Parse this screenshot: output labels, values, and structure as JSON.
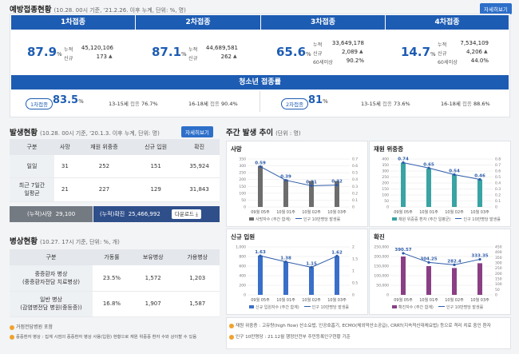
{
  "vaccination": {
    "title": "예방접종현황",
    "subtitle": "(10.28. 00시 기준, '21.2.26. 이후 누계, 단위: %, 명)",
    "detail_label": "자세히보기",
    "doses": [
      {
        "name": "1차접종",
        "pct": "87.9",
        "unit": "%",
        "cum_label": "누적",
        "cum": "45,120,106",
        "new_label": "신규",
        "new": "173"
      },
      {
        "name": "2차접종",
        "pct": "87.1",
        "unit": "%",
        "cum_label": "누적",
        "cum": "44,689,581",
        "new_label": "신규",
        "new": "262"
      },
      {
        "name": "3차접종",
        "pct": "65.6",
        "unit": "%",
        "cum_label": "누적",
        "cum": "33,649,178",
        "new_label": "신규",
        "new": "2,089",
        "sixty_label": "60세이상",
        "sixty": "90.2%"
      },
      {
        "name": "4차접종",
        "pct": "14.7",
        "unit": "%",
        "cum_label": "누적",
        "cum": "7,534,109",
        "new_label": "신규",
        "new": "4,206",
        "sixty_label": "60세이상",
        "sixty": "44.0%"
      }
    ],
    "youth": {
      "title": "청소년 접종률",
      "first_label": "1차접종",
      "first_pct": "83.5",
      "pct_unit": "%",
      "first_a_age": "13-15세",
      "first_a_lbl": "접종",
      "first_a_val": "76.7%",
      "first_b_age": "16-18세",
      "first_b_lbl": "접종",
      "first_b_val": "90.4%",
      "second_label": "2차접종",
      "second_pct": "81",
      "second_a_age": "13-15세",
      "second_a_lbl": "접종",
      "second_a_val": "73.6%",
      "second_b_age": "16-18세",
      "second_b_lbl": "접종",
      "second_b_val": "88.6%"
    }
  },
  "occurrence": {
    "title": "발생현황",
    "subtitle": "(10.28. 00시 기준, '20.1.3. 이후 누계, 단위: 명)",
    "detail_label": "자세히보기",
    "headers": [
      "구분",
      "사망",
      "재원 위중증",
      "신규 입원",
      "확진"
    ],
    "rows": [
      {
        "label": "일일",
        "cells": [
          "31",
          "252",
          "151",
          "35,924"
        ]
      },
      {
        "label1": "최근 7일간",
        "label2": "일평균",
        "cells": [
          "21",
          "227",
          "129",
          "31,843"
        ]
      }
    ],
    "cum_death_label": "(누적)사망",
    "cum_death": "29,100",
    "cum_conf_label": "(누적)확진",
    "cum_conf": "25,466,992",
    "download_label": "다운로드"
  },
  "beds": {
    "title": "병상현황",
    "subtitle": "(10.27. 17시 기준, 단위: %, 개)",
    "headers": [
      "구분",
      "가동률",
      "보유병상",
      "가용병상"
    ],
    "rows": [
      {
        "label1": "중증환자 병상",
        "label2": "(중증환자전담 치료병상)",
        "cells": [
          "23.5%",
          "1,572",
          "1,203"
        ]
      },
      {
        "label1": "일반 병상",
        "label2": "(감염병전담 병원(중등증))",
        "cells": [
          "16.8%",
          "1,907",
          "1,587"
        ]
      }
    ],
    "note1": "거점전담병원 포함",
    "note2": "중증환자 병상 : 집계 시점의 중증환자 병상 사용(입원) 현황으로 재원 위중증 환자 수와 상이할 수 있음"
  },
  "weekly": {
    "title": "주간 발생 추이",
    "subtitle": "(단위 : 명)",
    "note1": "재원 위중증 : 고유량(high flow) 산소요법, 인공호흡기, ECMO(체외막산소공급), CRRT(지속적신대체요법) 등으로 격리 치료 중인 환자",
    "note2": "인구 10만명당 : 21.12월 행정안전부 주민등록인구현황 기준",
    "charts": [
      {
        "title": "사망",
        "color": "#6d6d6d",
        "legend1": "사망자수 (주간 합계)",
        "legend2": "인구 10만명당 발생률",
        "chart_data": {
          "type": "bar",
          "categories": [
            "09월 05주",
            "10월 01주",
            "10월 02주",
            "10월 03주"
          ],
          "bars": [
            300,
            200,
            190,
            190
          ],
          "rate": [
            0.59,
            0.39,
            0.31,
            0.32
          ],
          "rate_labels": [
            "0.59",
            "0.39",
            "0.31",
            "0.32"
          ],
          "ylim": [
            0,
            350
          ],
          "yticks": [
            "0",
            "50",
            "100",
            "150",
            "200",
            "250",
            "300",
            "350"
          ],
          "ylim2": [
            0,
            0.7
          ],
          "yticks2": [
            "0",
            "0.1",
            "0.2",
            "0.3",
            "0.4",
            "0.5",
            "0.6",
            "0.7"
          ]
        }
      },
      {
        "title": "재원 위중증",
        "color": "#3aa3a3",
        "legend1": "재원 위중증 환자 (주간 일평균)",
        "legend2": "인구 10만명당 발생률",
        "chart_data": {
          "type": "bar",
          "categories": [
            "09월 05주",
            "10월 01주",
            "10월 02주",
            "10월 03주"
          ],
          "bars": [
            370,
            320,
            270,
            230
          ],
          "rate": [
            0.74,
            0.65,
            0.54,
            0.46
          ],
          "rate_labels": [
            "0.74",
            "0.65",
            "0.54",
            "0.46"
          ],
          "ylim": [
            0,
            400
          ],
          "yticks": [
            "0",
            "50",
            "100",
            "150",
            "200",
            "250",
            "300",
            "350",
            "400"
          ],
          "ylim2": [
            0,
            0.8
          ],
          "yticks2": [
            "0",
            "0.1",
            "0.2",
            "0.3",
            "0.4",
            "0.5",
            "0.6",
            "0.7",
            "0.8"
          ]
        }
      },
      {
        "title": "신규 입원",
        "color": "#3a6fc9",
        "legend1": "신규 입원자수 (주간 합계)",
        "legend2": "인구 10만명당 발생률",
        "chart_data": {
          "type": "bar",
          "categories": [
            "09월 05주",
            "10월 01주",
            "10월 02주",
            "10월 03주"
          ],
          "bars": [
            820,
            690,
            580,
            810
          ],
          "rate": [
            1.63,
            1.38,
            1.15,
            1.62
          ],
          "rate_labels": [
            "1.63",
            "1.38",
            "1.15",
            "1.62"
          ],
          "ylim": [
            0,
            1000
          ],
          "yticks": [
            "0",
            "200",
            "400",
            "600",
            "800",
            "1,000"
          ],
          "ylim2": [
            0,
            2
          ],
          "yticks2": [
            "0",
            "0.5",
            "1",
            "1.5",
            "2"
          ]
        }
      },
      {
        "title": "확진",
        "color": "#8a3f85",
        "legend1": "확진자수 (주간 합계)",
        "legend2": "인구 10만명당 발생률",
        "chart_data": {
          "type": "bar",
          "categories": [
            "09월 05주",
            "10월 01주",
            "10월 02주",
            "10월 03주"
          ],
          "bars": [
            200000,
            150000,
            140000,
            165000
          ],
          "rate": [
            390.57,
            304.25,
            282.4,
            333.35
          ],
          "rate_labels": [
            "390.57",
            "304.25",
            "282.4",
            "333.35"
          ],
          "ylim": [
            0,
            250000
          ],
          "yticks": [
            "0",
            "50,000",
            "100,000",
            "150,000",
            "200,000",
            "250,000"
          ],
          "ylim2": [
            0,
            450
          ],
          "yticks2": [
            "0",
            "50",
            "100",
            "150",
            "200",
            "250",
            "300",
            "350",
            "400",
            "450"
          ]
        }
      }
    ]
  }
}
